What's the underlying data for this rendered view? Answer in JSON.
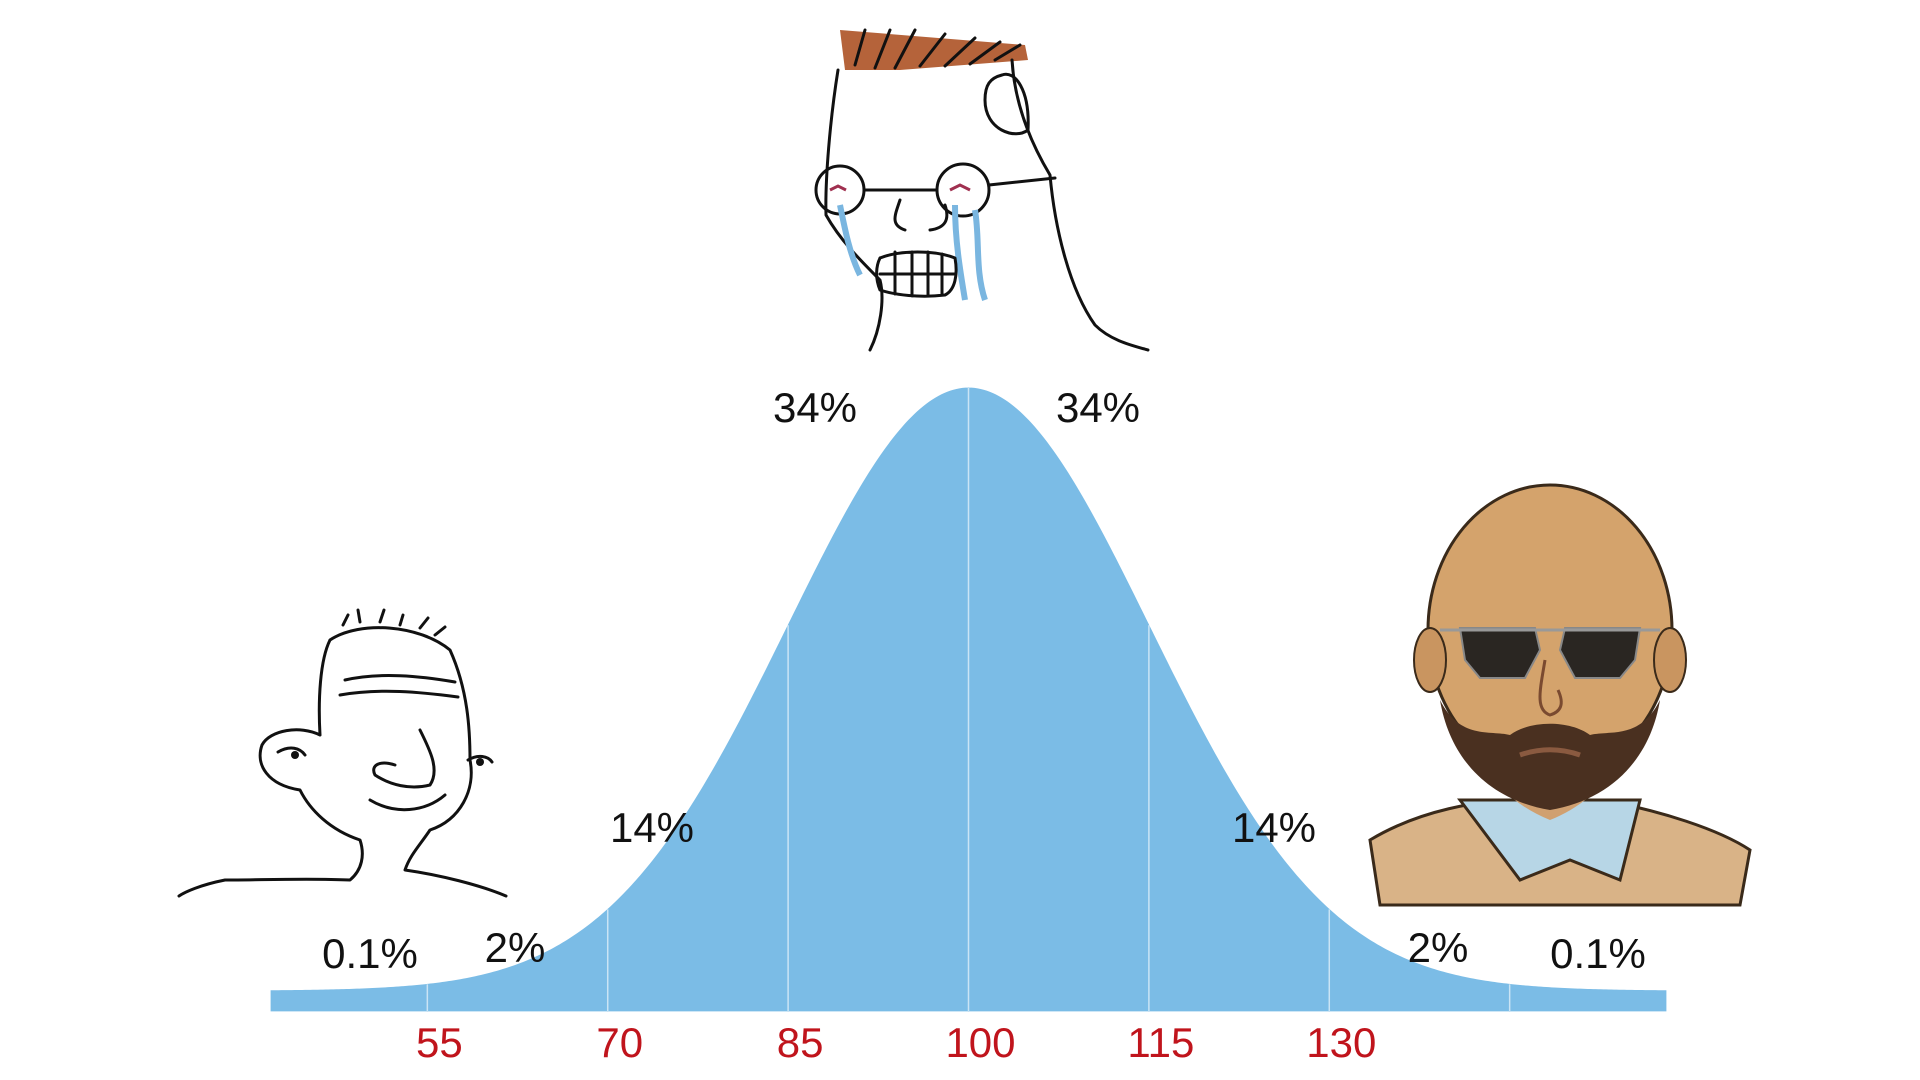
{
  "chart_data": {
    "type": "bell",
    "values": [
      0.1,
      2,
      14,
      34,
      34,
      14,
      2,
      0.1
    ],
    "value_labels": [
      "0.1%",
      "2%",
      "14%",
      "34%",
      "34%",
      "14%",
      "2%",
      "0.1%"
    ],
    "color": "#7bbce6",
    "xlim": [
      42,
      158
    ],
    "xticks": [
      55,
      70,
      85,
      100,
      115,
      130,
      {
        "value": 145,
        "label": null
      }
    ],
    "tick_label_color": "#c0141c"
  }
}
